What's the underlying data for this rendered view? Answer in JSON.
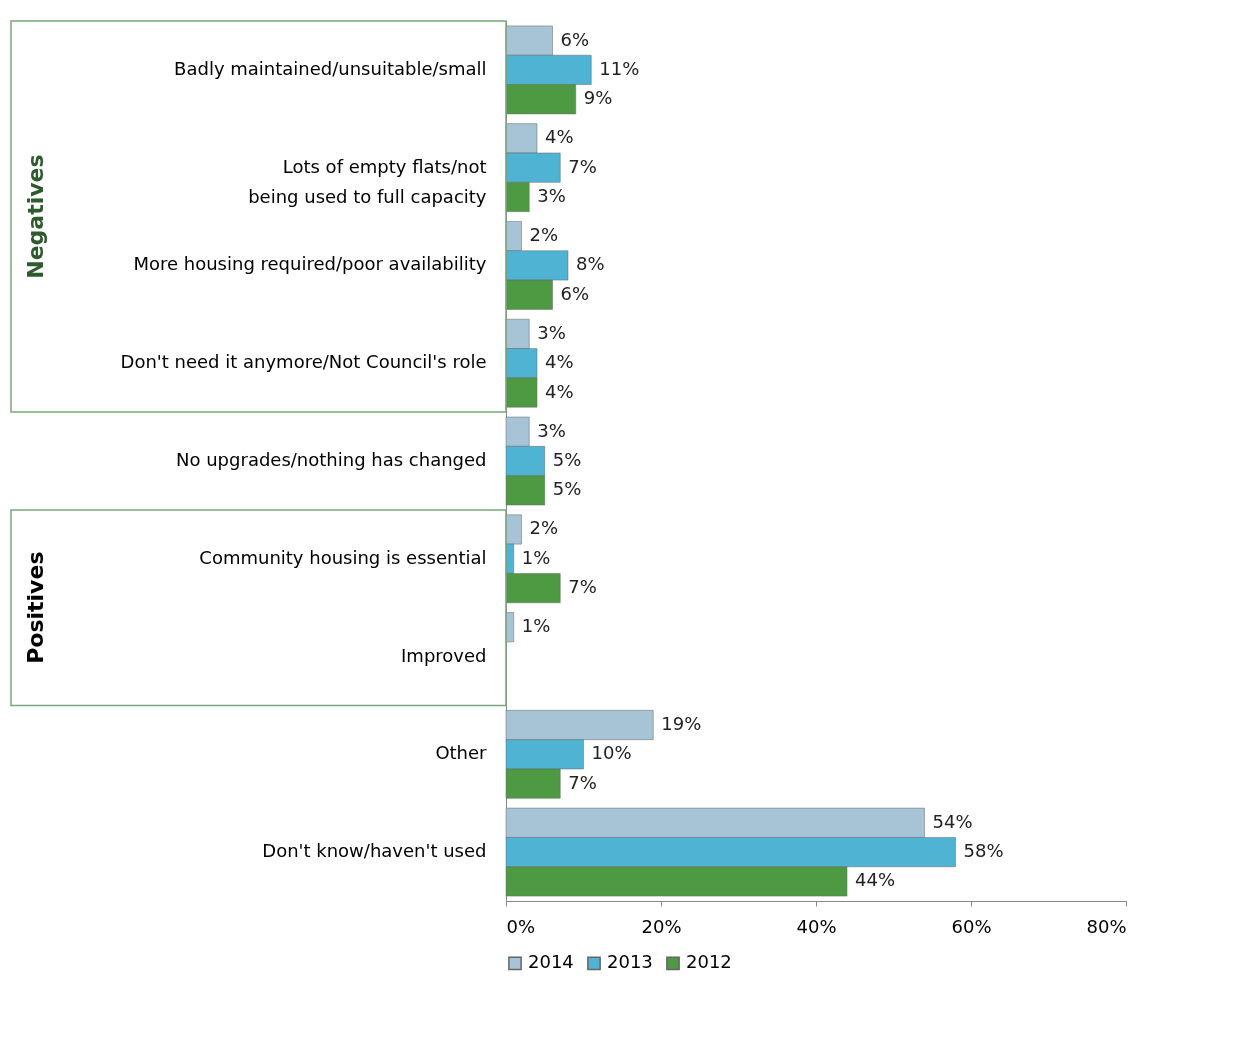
{
  "chart_data": {
    "type": "bar",
    "orientation": "horizontal",
    "categories": [
      "Badly maintained/unsuitable/small",
      "Lots of empty flats/not being used to full capacity",
      "More housing required/poor availability",
      "Don't need it anymore/Not Council's role",
      "No upgrades/nothing has changed",
      "Community housing is essential",
      "Improved",
      "Other",
      "Don't know/haven't used"
    ],
    "series": [
      {
        "name": "2014",
        "color": "#a7c3d6",
        "values": [
          6,
          4,
          2,
          3,
          3,
          2,
          1,
          19,
          54
        ],
        "value_labels": [
          "6%",
          "4%",
          "2%",
          "3%",
          "3%",
          "2%",
          "1%",
          "19%",
          "54%"
        ]
      },
      {
        "name": "2013",
        "color": "#4fb3d3",
        "values": [
          11,
          7,
          8,
          4,
          5,
          1,
          null,
          10,
          58
        ],
        "value_labels": [
          "11%",
          "7%",
          "8%",
          "4%",
          "5%",
          "1%",
          null,
          "10%",
          "58%"
        ]
      },
      {
        "name": "2012",
        "color": "#4e9a43",
        "values": [
          9,
          3,
          6,
          4,
          5,
          7,
          null,
          7,
          44
        ],
        "value_labels": [
          "9%",
          "3%",
          "6%",
          "4%",
          "5%",
          "7%",
          null,
          "7%",
          "44%"
        ]
      }
    ],
    "xlim": [
      0,
      80
    ],
    "xticks": [
      {
        "value": 0,
        "label": "0%"
      },
      {
        "value": 20,
        "label": "20%"
      },
      {
        "value": 40,
        "label": "40%"
      },
      {
        "value": 60,
        "label": "60%"
      },
      {
        "value": 80,
        "label": "80%"
      }
    ],
    "annotations": [
      "Negatives",
      "Positives"
    ],
    "grid": false,
    "legend": "bottom"
  }
}
